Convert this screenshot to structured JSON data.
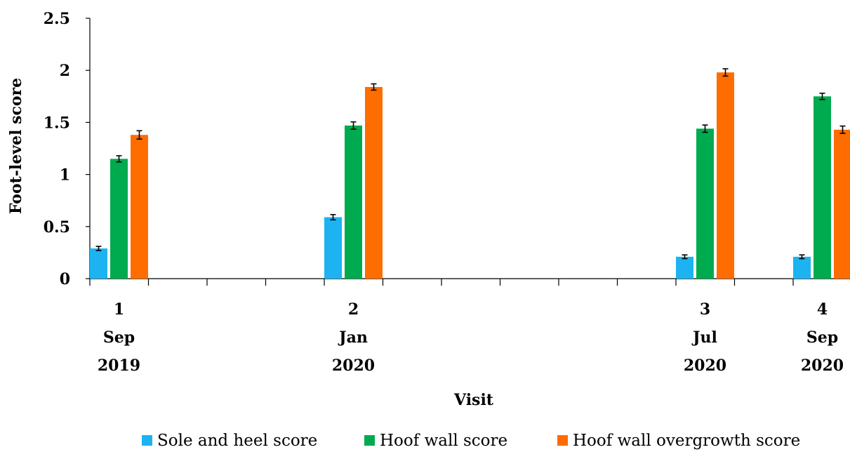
{
  "chart_data": {
    "type": "bar",
    "xlabel": "Visit",
    "ylabel": "Foot-level score",
    "ylim": [
      0,
      2.5
    ],
    "yticks": [
      "0",
      "0.5",
      "1",
      "1.5",
      "2",
      "2.5"
    ],
    "x_months_since_start": [
      0,
      4,
      10,
      12
    ],
    "categories": [
      {
        "visit": "1",
        "month": "Sep",
        "year": "2019"
      },
      {
        "visit": "2",
        "month": "Jan",
        "year": "2020"
      },
      {
        "visit": "3",
        "month": "Jul",
        "year": "2020"
      },
      {
        "visit": "4",
        "month": "Sep",
        "year": "2020"
      }
    ],
    "series": [
      {
        "name": "Sole and heel score",
        "color": "#1CB3F0",
        "values": [
          0.29,
          0.59,
          0.21,
          0.21
        ],
        "errors": [
          0.02,
          0.025,
          0.018,
          0.018
        ]
      },
      {
        "name": "Hoof wall score",
        "color": "#00AA4F",
        "values": [
          1.15,
          1.47,
          1.44,
          1.75
        ],
        "errors": [
          0.03,
          0.035,
          0.035,
          0.03
        ]
      },
      {
        "name": "Hoof wall overgrowth score",
        "color": "#FF6D00",
        "values": [
          1.38,
          1.84,
          1.98,
          1.43
        ],
        "errors": [
          0.04,
          0.03,
          0.035,
          0.035
        ]
      }
    ],
    "error_bars": true,
    "grid": false,
    "legend_position": "bottom"
  }
}
